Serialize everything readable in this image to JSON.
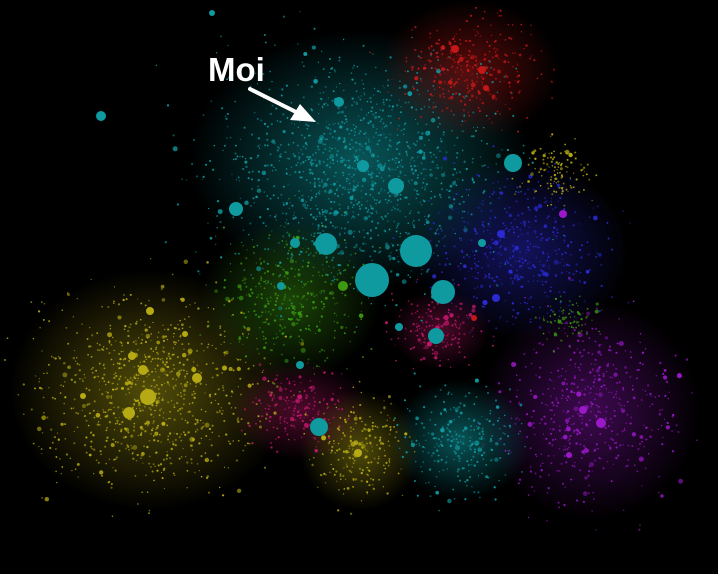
{
  "annotation": {
    "label": "Moi"
  },
  "colors": {
    "background": "#000000",
    "cyan": "#0f9aa0",
    "yellow": "#b6aa14",
    "red": "#c41818",
    "blue": "#2a2ad0",
    "purple": "#9a18c8",
    "green": "#3c9a12",
    "magenta": "#c0186a",
    "arrow": "#ffffff"
  }
}
